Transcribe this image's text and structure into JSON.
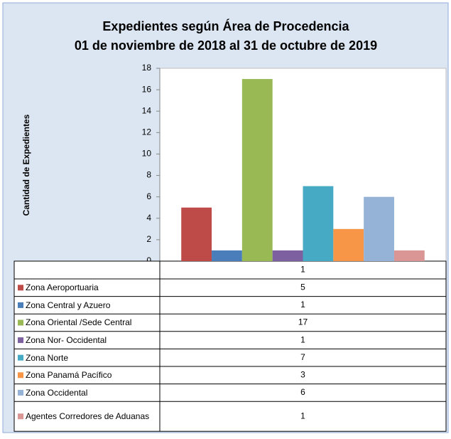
{
  "chart_data": {
    "type": "bar",
    "title": "Expedientes según Área de Procedencia",
    "subtitle": "01 de noviembre de 2018 al 31 de octubre de 2019",
    "y_label": "Cantidad de Expedientes",
    "categories": [
      "1"
    ],
    "series": [
      {
        "name": "Zona Aeroportuaria",
        "color": "#be4b48",
        "values": [
          5
        ]
      },
      {
        "name": "Zona Central y Azuero",
        "color": "#4a7ebb",
        "values": [
          1
        ]
      },
      {
        "name": "Zona Oriental /Sede Central",
        "color": "#98b954",
        "values": [
          17
        ]
      },
      {
        "name": "Zona Nor- Occidental",
        "color": "#7d60a0",
        "values": [
          1
        ]
      },
      {
        "name": "Zona Norte",
        "color": "#46aac5",
        "values": [
          7
        ]
      },
      {
        "name": "Zona Panamá Pacífico",
        "color": "#f79646",
        "values": [
          3
        ]
      },
      {
        "name": "Zona Occidental",
        "color": "#95b3d7",
        "values": [
          6
        ]
      },
      {
        "name": "Agentes Corredores de Aduanas",
        "color": "#d99694",
        "values": [
          1
        ]
      }
    ],
    "ylim": [
      0,
      18
    ],
    "yticks": [
      0,
      2,
      4,
      6,
      8,
      10,
      12,
      14,
      16,
      18
    ],
    "grid": false
  }
}
